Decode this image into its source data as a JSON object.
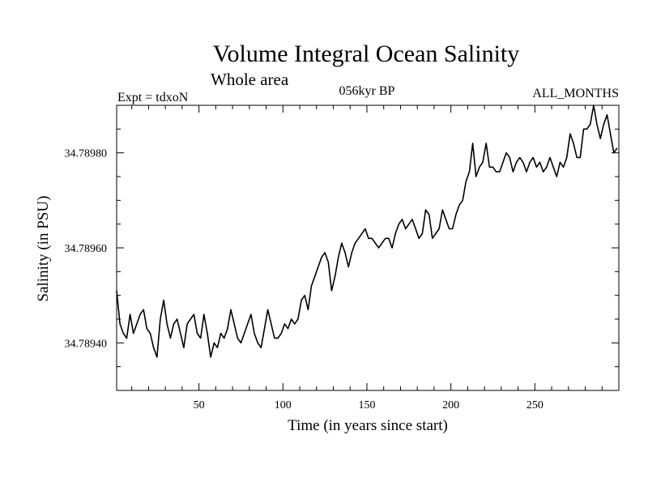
{
  "chart_data": {
    "type": "line",
    "title": "Volume Integral Ocean Salinity",
    "subtitle": "Whole area",
    "header_left": "Expt = tdxoN",
    "header_center": "056kyr BP",
    "header_right": "ALL_MONTHS",
    "xlabel": "Time (in years since start)",
    "ylabel": "Salinity (in PSU)",
    "xlim": [
      1,
      300
    ],
    "ylim": [
      34.7893,
      34.7899
    ],
    "xticks": [
      50,
      100,
      150,
      200,
      250
    ],
    "yticks": [
      34.7894,
      34.7896,
      34.7898
    ],
    "ytick_labels": [
      "34.78940",
      "34.78960",
      "34.78980"
    ],
    "grid": false,
    "line_color": "#000000",
    "series": [
      {
        "x": [
          1,
          3,
          5,
          7,
          9,
          11,
          13,
          15,
          17,
          19,
          21,
          23,
          25,
          27,
          29,
          31,
          33,
          35,
          37,
          39,
          41,
          43,
          45,
          47,
          49,
          51,
          53,
          55,
          57,
          59,
          61,
          63,
          65,
          67,
          69,
          71,
          73,
          75,
          77,
          79,
          81,
          83,
          85,
          87,
          89,
          91,
          93,
          95,
          97,
          99,
          101,
          103,
          105,
          107,
          109,
          111,
          113,
          115,
          117,
          119,
          121,
          123,
          125,
          127,
          129,
          131,
          133,
          135,
          137,
          139,
          141,
          143,
          145,
          147,
          149,
          151,
          153,
          155,
          157,
          159,
          161,
          163,
          165,
          167,
          169,
          171,
          173,
          175,
          177,
          179,
          181,
          183,
          185,
          187,
          189,
          191,
          193,
          195,
          197,
          199,
          201,
          203,
          205,
          207,
          209,
          211,
          213,
          215,
          217,
          219,
          221,
          223,
          225,
          227,
          229,
          231,
          233,
          235,
          237,
          239,
          241,
          243,
          245,
          247,
          249,
          251,
          253,
          255,
          257,
          259,
          261,
          263,
          265,
          267,
          269,
          271,
          273,
          275,
          277,
          279,
          281,
          283,
          285,
          287,
          289,
          291,
          293,
          295,
          297,
          299
        ],
        "y": [
          34.78951,
          34.78944,
          34.78942,
          34.78941,
          34.78946,
          34.78942,
          34.78944,
          34.78946,
          34.78947,
          34.78943,
          34.78942,
          34.78939,
          34.78937,
          34.78945,
          34.78949,
          34.78944,
          34.78941,
          34.78944,
          34.78945,
          34.78942,
          34.78939,
          34.78944,
          34.78945,
          34.78946,
          34.78942,
          34.78941,
          34.78946,
          34.78942,
          34.78937,
          34.7894,
          34.78939,
          34.78942,
          34.78941,
          34.78943,
          34.78947,
          34.78944,
          34.78941,
          34.7894,
          34.78942,
          34.78944,
          34.78946,
          34.78942,
          34.7894,
          34.78939,
          34.78943,
          34.78947,
          34.78944,
          34.78941,
          34.78941,
          34.78942,
          34.78944,
          34.78943,
          34.78945,
          34.78944,
          34.78945,
          34.78949,
          34.7895,
          34.78947,
          34.78952,
          34.78954,
          34.78956,
          34.78958,
          34.78959,
          34.78957,
          34.78951,
          34.78954,
          34.78958,
          34.78961,
          34.78959,
          34.78956,
          34.78959,
          34.78961,
          34.78962,
          34.78963,
          34.78964,
          34.78962,
          34.78962,
          34.78961,
          34.7896,
          34.78961,
          34.78962,
          34.78962,
          34.7896,
          34.78963,
          34.78965,
          34.78966,
          34.78964,
          34.78965,
          34.78966,
          34.78964,
          34.78962,
          34.78963,
          34.78968,
          34.78967,
          34.78962,
          34.78963,
          34.78964,
          34.78968,
          34.78966,
          34.78964,
          34.78964,
          34.78967,
          34.78969,
          34.7897,
          34.78974,
          34.78976,
          34.78982,
          34.78975,
          34.78977,
          34.78978,
          34.78982,
          34.78977,
          34.78977,
          34.78976,
          34.78976,
          34.78978,
          34.7898,
          34.78979,
          34.78976,
          34.78978,
          34.78979,
          34.78978,
          34.78976,
          34.78978,
          34.78979,
          34.78977,
          34.78978,
          34.78976,
          34.78977,
          34.78979,
          34.78977,
          34.78975,
          34.78978,
          34.78977,
          34.78979,
          34.78984,
          34.78982,
          34.78979,
          34.78979,
          34.78985,
          34.78985,
          34.78986,
          34.7899,
          34.78986,
          34.78983,
          34.78986,
          34.78988,
          34.78984,
          34.7898,
          34.78981
        ]
      }
    ]
  }
}
